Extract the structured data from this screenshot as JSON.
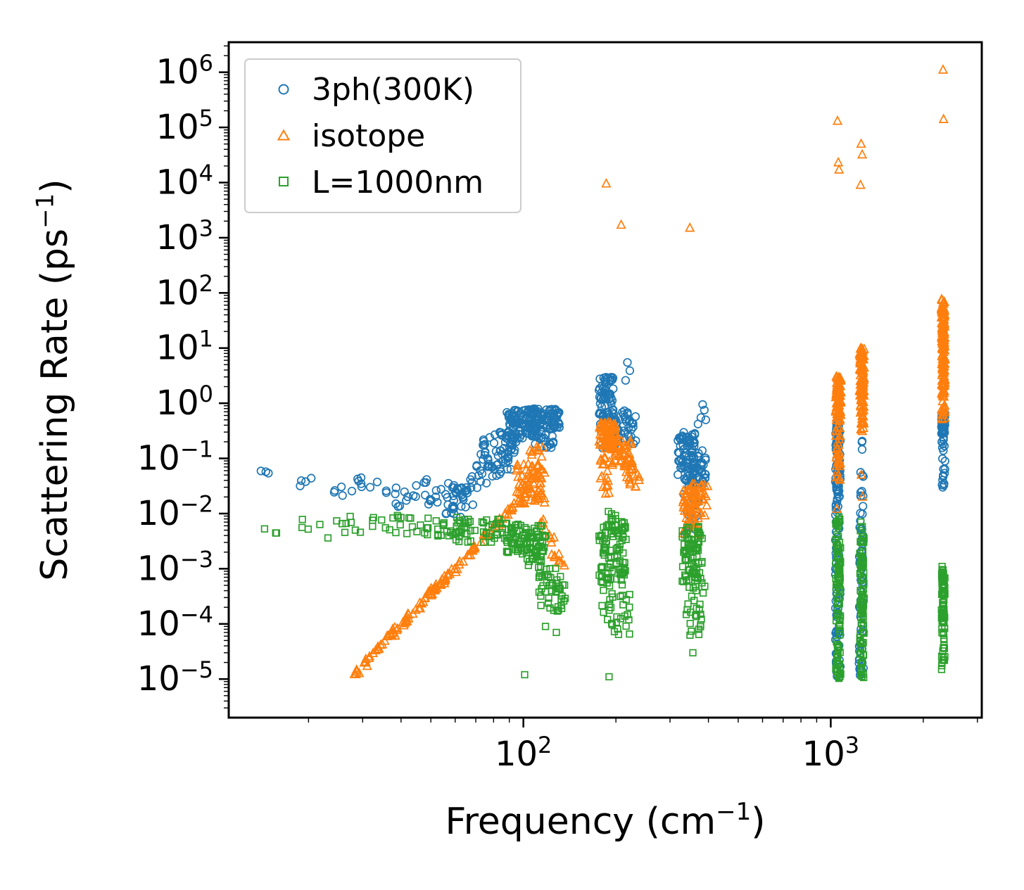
{
  "chart_data": {
    "type": "scatter",
    "title": "",
    "xlabel": "Frequency (cm^{-1})",
    "ylabel": "Scattering Rate (ps^{-1})",
    "xscale": "log",
    "yscale": "log",
    "xlim": [
      11,
      3100
    ],
    "ylim": [
      2e-06,
      3500000.0
    ],
    "x_major_ticks": [
      100,
      1000
    ],
    "y_tick_exponents": [
      6,
      5,
      4,
      3,
      2,
      1,
      0,
      -1,
      -2,
      -3,
      -4,
      -5
    ],
    "grid": false,
    "legend_position": "upper left",
    "frame_color": "#000000",
    "series": [
      {
        "name": "3ph(300K)",
        "marker": "circle",
        "color": "#1f77b4",
        "clusters": [
          {
            "kind": "box",
            "x": [
              13.8,
              15.5
            ],
            "y": [
              0.05,
              0.075
            ],
            "n": 3
          },
          {
            "kind": "box",
            "x": [
              18.5,
              20.5
            ],
            "y": [
              0.028,
              0.06
            ],
            "n": 4
          },
          {
            "kind": "box",
            "x": [
              24,
              28
            ],
            "y": [
              0.018,
              0.05
            ],
            "n": 5
          },
          {
            "kind": "box",
            "x": [
              28,
              34
            ],
            "y": [
              0.022,
              0.05
            ],
            "n": 7
          },
          {
            "kind": "box",
            "x": [
              34,
              42
            ],
            "y": [
              0.013,
              0.035
            ],
            "n": 9
          },
          {
            "kind": "box",
            "x": [
              42,
              50
            ],
            "y": [
              0.018,
              0.045
            ],
            "n": 9
          },
          {
            "kind": "box",
            "x": [
              48,
              58
            ],
            "y": [
              0.008,
              0.03
            ],
            "n": 12
          },
          {
            "kind": "box",
            "x": [
              55,
              66
            ],
            "y": [
              0.01,
              0.042
            ],
            "n": 14
          },
          {
            "kind": "line",
            "x": [
              58,
              95
            ],
            "y": [
              0.012,
              0.2
            ],
            "n": 55,
            "jy": 0.45
          },
          {
            "kind": "box",
            "x": [
              72,
              92
            ],
            "y": [
              0.06,
              0.3
            ],
            "n": 45
          },
          {
            "kind": "box",
            "x": [
              88,
              112
            ],
            "y": [
              0.22,
              0.8
            ],
            "n": 85
          },
          {
            "kind": "box",
            "x": [
              103,
              132
            ],
            "y": [
              0.33,
              0.8
            ],
            "n": 85
          },
          {
            "kind": "box",
            "x": [
              108,
              126
            ],
            "y": [
              0.14,
              0.33
            ],
            "n": 18
          },
          {
            "kind": "box",
            "x": [
              176,
              196
            ],
            "y": [
              0.55,
              3.2
            ],
            "n": 60
          },
          {
            "kind": "box",
            "x": [
              176,
              202
            ],
            "y": [
              0.15,
              0.55
            ],
            "n": 40
          },
          {
            "kind": "box",
            "x": [
              196,
              232
            ],
            "y": [
              0.18,
              0.75
            ],
            "n": 35
          },
          {
            "kind": "pts",
            "pts": [
              [
                218,
                5.5
              ],
              [
                222,
                3.9
              ],
              [
                215,
                2.6
              ]
            ]
          },
          {
            "kind": "box",
            "x": [
              318,
              362
            ],
            "y": [
              0.05,
              0.3
            ],
            "n": 70
          },
          {
            "kind": "box",
            "x": [
              338,
              392
            ],
            "y": [
              0.03,
              0.14
            ],
            "n": 40
          },
          {
            "kind": "pts",
            "pts": [
              [
                383,
                0.95
              ],
              [
                388,
                0.75
              ],
              [
                378,
                0.55
              ],
              [
                392,
                0.5
              ],
              [
                370,
                0.42
              ]
            ]
          },
          {
            "kind": "box",
            "x": [
              328,
              372
            ],
            "y": [
              0.004,
              0.05
            ],
            "n": 25
          },
          {
            "kind": "box",
            "x": [
              1035,
              1075
            ],
            "y": [
              0.01,
              0.5
            ],
            "n": 80
          },
          {
            "kind": "box",
            "x": [
              1035,
              1075
            ],
            "y": [
              1e-05,
              0.01
            ],
            "n": 60
          },
          {
            "kind": "box",
            "x": [
              1235,
              1278
            ],
            "y": [
              1e-05,
              0.25
            ],
            "n": 70
          },
          {
            "kind": "box",
            "x": [
              2290,
              2355
            ],
            "y": [
              0.28,
              0.7
            ],
            "n": 45
          },
          {
            "kind": "box",
            "x": [
              2290,
              2355
            ],
            "y": [
              0.03,
              0.28
            ],
            "n": 20
          }
        ]
      },
      {
        "name": "isotope",
        "marker": "triangle",
        "color": "#ff7f0e",
        "clusters": [
          {
            "kind": "line",
            "x": [
              28,
              100
            ],
            "y": [
              1.2e-05,
              0.02
            ],
            "n": 130,
            "jy": 0.09
          },
          {
            "kind": "box",
            "x": [
              95,
              118
            ],
            "y": [
              0.015,
              0.08
            ],
            "n": 70
          },
          {
            "kind": "box",
            "x": [
              103,
              116
            ],
            "y": [
              0.07,
              0.16
            ],
            "n": 12
          },
          {
            "kind": "line",
            "x": [
              114,
              136
            ],
            "y": [
              0.007,
              0.0012
            ],
            "n": 16,
            "jy": 0.25
          },
          {
            "kind": "box",
            "x": [
              176,
              200
            ],
            "y": [
              0.14,
              0.45
            ],
            "n": 70
          },
          {
            "kind": "box",
            "x": [
              192,
              226
            ],
            "y": [
              0.07,
              0.22
            ],
            "n": 45
          },
          {
            "kind": "box",
            "x": [
              214,
              238
            ],
            "y": [
              0.03,
              0.09
            ],
            "n": 20
          },
          {
            "kind": "box",
            "x": [
              178,
              192
            ],
            "y": [
              0.02,
              0.13
            ],
            "n": 18
          },
          {
            "kind": "pts",
            "pts": [
              [
                186,
                9500
              ],
              [
                208,
                1700
              ],
              [
                348,
                1500
              ]
            ]
          },
          {
            "kind": "box",
            "x": [
              330,
              372
            ],
            "y": [
              0.004,
              0.035
            ],
            "n": 55
          },
          {
            "kind": "box",
            "x": [
              352,
              398
            ],
            "y": [
              0.008,
              0.035
            ],
            "n": 25
          },
          {
            "kind": "box",
            "x": [
              1038,
              1078
            ],
            "y": [
              0.5,
              3.2
            ],
            "n": 80
          },
          {
            "kind": "box",
            "x": [
              1040,
              1075
            ],
            "y": [
              0.04,
              0.5
            ],
            "n": 35
          },
          {
            "kind": "pts",
            "pts": [
              [
                1052,
                130000
              ],
              [
                1058,
                23000
              ],
              [
                1064,
                17000
              ],
              [
                1047,
                0.012
              ]
            ]
          },
          {
            "kind": "box",
            "x": [
              1242,
              1285
            ],
            "y": [
              1.0,
              10
            ],
            "n": 95
          },
          {
            "kind": "box",
            "x": [
              1245,
              1282
            ],
            "y": [
              0.3,
              1.0
            ],
            "n": 25
          },
          {
            "kind": "pts",
            "pts": [
              [
                1256,
                50000
              ],
              [
                1266,
                32000
              ],
              [
                1250,
                9000
              ],
              [
                1262,
                0.45
              ],
              [
                1258,
                0.05
              ],
              [
                1270,
                0.02
              ]
            ]
          },
          {
            "kind": "box",
            "x": [
              2292,
              2352
            ],
            "y": [
              3,
              80
            ],
            "n": 130
          },
          {
            "kind": "box",
            "x": [
              2292,
              2352
            ],
            "y": [
              0.5,
              3
            ],
            "n": 40
          },
          {
            "kind": "pts",
            "pts": [
              [
                2320,
                1100000
              ],
              [
                2328,
                140000
              ]
            ]
          }
        ]
      },
      {
        "name": "L=1000nm",
        "marker": "square",
        "color": "#2ca02c",
        "clusters": [
          {
            "kind": "box",
            "x": [
              13.8,
              15.8
            ],
            "y": [
              0.0042,
              0.0055
            ],
            "n": 3
          },
          {
            "kind": "box",
            "x": [
              19,
              22
            ],
            "y": [
              0.005,
              0.009
            ],
            "n": 4
          },
          {
            "kind": "box",
            "x": [
              23,
              27
            ],
            "y": [
              0.0035,
              0.0075
            ],
            "n": 5
          },
          {
            "kind": "box",
            "x": [
              27,
              36
            ],
            "y": [
              0.0045,
              0.009
            ],
            "n": 9
          },
          {
            "kind": "box",
            "x": [
              36,
              48
            ],
            "y": [
              0.004,
              0.0095
            ],
            "n": 14
          },
          {
            "kind": "box",
            "x": [
              48,
              62
            ],
            "y": [
              0.0035,
              0.009
            ],
            "n": 22
          },
          {
            "kind": "box",
            "x": [
              60,
              92
            ],
            "y": [
              0.003,
              0.008
            ],
            "n": 55
          },
          {
            "kind": "box",
            "x": [
              88,
              120
            ],
            "y": [
              0.0018,
              0.0065
            ],
            "n": 80
          },
          {
            "kind": "line",
            "x": [
              100,
              138
            ],
            "y": [
              0.003,
              0.0003
            ],
            "n": 45,
            "jy": 0.35
          },
          {
            "kind": "box",
            "x": [
              112,
              138
            ],
            "y": [
              0.00015,
              0.0008
            ],
            "n": 25
          },
          {
            "kind": "pts",
            "pts": [
              [
                101,
                1.2e-05
              ],
              [
                118,
                9e-05
              ],
              [
                128,
                7e-05
              ]
            ]
          },
          {
            "kind": "box",
            "x": [
              176,
              216
            ],
            "y": [
              0.0005,
              0.006
            ],
            "n": 90
          },
          {
            "kind": "box",
            "x": [
              180,
              222
            ],
            "y": [
              6e-05,
              0.0005
            ],
            "n": 30
          },
          {
            "kind": "box",
            "x": [
              184,
              214
            ],
            "y": [
              0.006,
              0.011
            ],
            "n": 12
          },
          {
            "kind": "pts",
            "pts": [
              [
                190,
                1.1e-05
              ]
            ]
          },
          {
            "kind": "box",
            "x": [
              328,
              382
            ],
            "y": [
              0.0005,
              0.006
            ],
            "n": 80
          },
          {
            "kind": "box",
            "x": [
              338,
              392
            ],
            "y": [
              6e-05,
              0.0005
            ],
            "n": 25
          },
          {
            "kind": "pts",
            "pts": [
              [
                356,
                3e-05
              ],
              [
                372,
                8e-05
              ]
            ]
          },
          {
            "kind": "box",
            "x": [
              1038,
              1078
            ],
            "y": [
              1e-05,
              0.009
            ],
            "n": 100
          },
          {
            "kind": "box",
            "x": [
              1242,
              1284
            ],
            "y": [
              1e-05,
              0.008
            ],
            "n": 85
          },
          {
            "kind": "box",
            "x": [
              2292,
              2352
            ],
            "y": [
              0.0001,
              0.0012
            ],
            "n": 70
          },
          {
            "kind": "box",
            "x": [
              2292,
              2352
            ],
            "y": [
              1e-05,
              0.0001
            ],
            "n": 20
          }
        ]
      }
    ]
  },
  "legend": {
    "items": [
      {
        "label": "3ph(300K)"
      },
      {
        "label": "isotope"
      },
      {
        "label": "L=1000nm"
      }
    ]
  }
}
